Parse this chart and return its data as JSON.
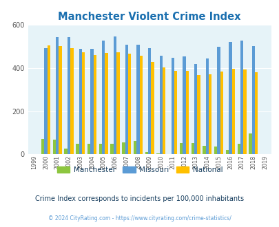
{
  "title": "Manchester Violent Crime Index",
  "years": [
    "99",
    "00",
    "01",
    "02",
    "03",
    "04",
    "05",
    "06",
    "07",
    "08",
    "09",
    "10",
    "11",
    "12",
    "13",
    "14",
    "15",
    "16",
    "17",
    "18",
    "19"
  ],
  "year_labels": [
    "1999",
    "2000",
    "2001",
    "2002",
    "2003",
    "2004",
    "2005",
    "2006",
    "2007",
    "2008",
    "2009",
    "2010",
    "2011",
    "2012",
    "2013",
    "2014",
    "2015",
    "2016",
    "2017",
    "2018",
    "2019"
  ],
  "manchester": [
    0,
    73,
    68,
    28,
    50,
    48,
    48,
    48,
    57,
    63,
    10,
    3,
    0,
    52,
    52,
    38,
    35,
    22,
    50,
    97,
    0
  ],
  "missouri": [
    0,
    493,
    543,
    543,
    488,
    490,
    526,
    548,
    507,
    507,
    493,
    456,
    447,
    453,
    420,
    445,
    498,
    521,
    529,
    503,
    0
  ],
  "national": [
    0,
    506,
    502,
    494,
    472,
    462,
    469,
    473,
    466,
    457,
    429,
    404,
    387,
    387,
    368,
    372,
    383,
    396,
    394,
    381,
    0
  ],
  "manchester_color": "#8dc63f",
  "missouri_color": "#5b9bd5",
  "national_color": "#ffc000",
  "bg_color": "#e6f3f8",
  "title_color": "#1a6faf",
  "ylabel_max": 600,
  "yticks": [
    0,
    200,
    400,
    600
  ],
  "subtitle": "Crime Index corresponds to incidents per 100,000 inhabitants",
  "footer": "© 2024 CityRating.com - https://www.cityrating.com/crime-statistics/",
  "legend_labels": [
    "Manchester",
    "Missouri",
    "National"
  ]
}
